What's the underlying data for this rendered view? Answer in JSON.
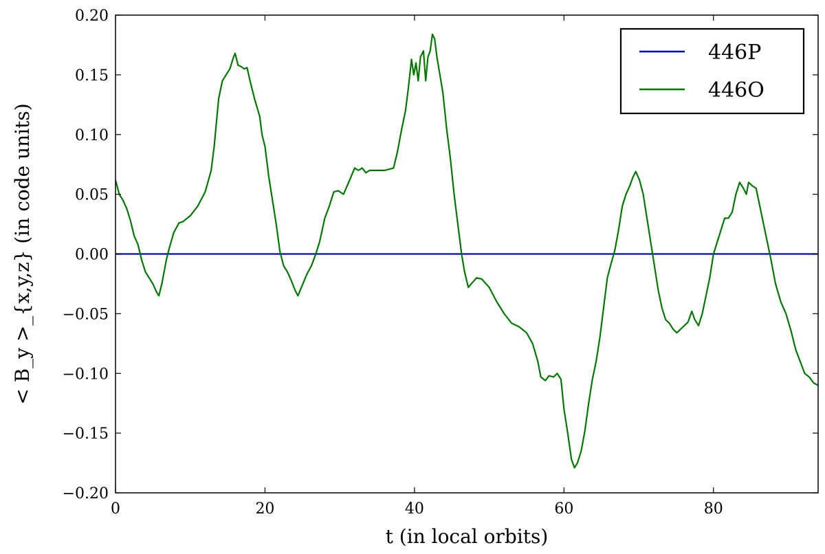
{
  "chart_data": {
    "type": "line",
    "title": "",
    "xlabel": "t (in local orbits)",
    "ylabel": "< B_y >_{x,y,z}  (in code units)",
    "xlim": [
      0,
      94
    ],
    "ylim": [
      -0.2,
      0.2
    ],
    "x_ticks": [
      0,
      20,
      40,
      60,
      80
    ],
    "x_tick_labels": [
      "0",
      "20",
      "40",
      "60",
      "80"
    ],
    "y_ticks": [
      -0.2,
      -0.15,
      -0.1,
      -0.05,
      0.0,
      0.05,
      0.1,
      0.15,
      0.2
    ],
    "y_tick_labels": [
      "−0.20",
      "−0.15",
      "−0.10",
      "−0.05",
      "0.00",
      "0.05",
      "0.10",
      "0.15",
      "0.20"
    ],
    "grid": false,
    "legend_position": "top-right",
    "series": [
      {
        "name": "446P",
        "color": "#0000cc",
        "points": [
          [
            0,
            0.0
          ],
          [
            94,
            0.0
          ]
        ]
      },
      {
        "name": "446O",
        "color": "#007700",
        "points": [
          [
            0,
            0.062
          ],
          [
            0.5,
            0.05
          ],
          [
            1,
            0.045
          ],
          [
            1.5,
            0.038
          ],
          [
            2,
            0.028
          ],
          [
            2.5,
            0.015
          ],
          [
            3,
            0.008
          ],
          [
            3.5,
            -0.005
          ],
          [
            4,
            -0.015
          ],
          [
            4.5,
            -0.02
          ],
          [
            5,
            -0.025
          ],
          [
            5.5,
            -0.032
          ],
          [
            5.8,
            -0.035
          ],
          [
            6.2,
            -0.025
          ],
          [
            6.8,
            -0.005
          ],
          [
            7.2,
            0.005
          ],
          [
            7.8,
            0.018
          ],
          [
            8.5,
            0.026
          ],
          [
            9,
            0.027
          ],
          [
            10,
            0.032
          ],
          [
            11,
            0.04
          ],
          [
            12,
            0.052
          ],
          [
            12.8,
            0.07
          ],
          [
            13.2,
            0.09
          ],
          [
            13.8,
            0.13
          ],
          [
            14.3,
            0.145
          ],
          [
            14.8,
            0.15
          ],
          [
            15.3,
            0.155
          ],
          [
            15.8,
            0.165
          ],
          [
            16,
            0.168
          ],
          [
            16.4,
            0.158
          ],
          [
            16.8,
            0.157
          ],
          [
            17.2,
            0.155
          ],
          [
            17.6,
            0.156
          ],
          [
            18,
            0.145
          ],
          [
            18.6,
            0.13
          ],
          [
            19.3,
            0.115
          ],
          [
            19.6,
            0.1
          ],
          [
            20,
            0.09
          ],
          [
            20.5,
            0.065
          ],
          [
            21,
            0.045
          ],
          [
            21.5,
            0.025
          ],
          [
            22,
            0.002
          ],
          [
            22.5,
            -0.01
          ],
          [
            23,
            -0.015
          ],
          [
            23.5,
            -0.022
          ],
          [
            24,
            -0.03
          ],
          [
            24.4,
            -0.035
          ],
          [
            25,
            -0.026
          ],
          [
            25.6,
            -0.017
          ],
          [
            26.2,
            -0.01
          ],
          [
            26.8,
            0.0
          ],
          [
            27.3,
            0.01
          ],
          [
            28,
            0.03
          ],
          [
            28.6,
            0.04
          ],
          [
            29.2,
            0.052
          ],
          [
            29.8,
            0.053
          ],
          [
            30.5,
            0.05
          ],
          [
            31.2,
            0.06
          ],
          [
            32,
            0.072
          ],
          [
            32.5,
            0.07
          ],
          [
            33,
            0.072
          ],
          [
            33.5,
            0.068
          ],
          [
            34,
            0.07
          ],
          [
            35,
            0.07
          ],
          [
            36,
            0.07
          ],
          [
            37.2,
            0.072
          ],
          [
            37.7,
            0.085
          ],
          [
            38.3,
            0.105
          ],
          [
            38.8,
            0.12
          ],
          [
            39.2,
            0.14
          ],
          [
            39.6,
            0.163
          ],
          [
            39.9,
            0.15
          ],
          [
            40.2,
            0.16
          ],
          [
            40.5,
            0.145
          ],
          [
            40.8,
            0.165
          ],
          [
            41.2,
            0.17
          ],
          [
            41.5,
            0.145
          ],
          [
            41.8,
            0.165
          ],
          [
            42.1,
            0.17
          ],
          [
            42.4,
            0.184
          ],
          [
            42.7,
            0.18
          ],
          [
            43,
            0.165
          ],
          [
            43.4,
            0.15
          ],
          [
            43.8,
            0.135
          ],
          [
            44.3,
            0.105
          ],
          [
            44.8,
            0.08
          ],
          [
            45.3,
            0.05
          ],
          [
            45.8,
            0.025
          ],
          [
            46.3,
            0.0
          ],
          [
            46.7,
            -0.015
          ],
          [
            47.2,
            -0.028
          ],
          [
            47.6,
            -0.025
          ],
          [
            48.3,
            -0.02
          ],
          [
            49,
            -0.021
          ],
          [
            50,
            -0.028
          ],
          [
            51,
            -0.04
          ],
          [
            52,
            -0.05
          ],
          [
            53,
            -0.058
          ],
          [
            54,
            -0.061
          ],
          [
            55,
            -0.066
          ],
          [
            55.8,
            -0.075
          ],
          [
            56.5,
            -0.09
          ],
          [
            56.9,
            -0.103
          ],
          [
            57.5,
            -0.106
          ],
          [
            58,
            -0.102
          ],
          [
            58.6,
            -0.103
          ],
          [
            59.1,
            -0.1
          ],
          [
            59.6,
            -0.105
          ],
          [
            60,
            -0.13
          ],
          [
            60.5,
            -0.15
          ],
          [
            61,
            -0.172
          ],
          [
            61.4,
            -0.179
          ],
          [
            61.8,
            -0.175
          ],
          [
            62.3,
            -0.165
          ],
          [
            62.8,
            -0.148
          ],
          [
            63.3,
            -0.125
          ],
          [
            63.8,
            -0.105
          ],
          [
            64.3,
            -0.09
          ],
          [
            64.8,
            -0.07
          ],
          [
            65.3,
            -0.045
          ],
          [
            65.8,
            -0.02
          ],
          [
            66.3,
            -0.008
          ],
          [
            66.8,
            0.003
          ],
          [
            67.3,
            0.02
          ],
          [
            67.8,
            0.04
          ],
          [
            68.3,
            0.05
          ],
          [
            68.8,
            0.057
          ],
          [
            69.2,
            0.064
          ],
          [
            69.6,
            0.069
          ],
          [
            70.1,
            0.062
          ],
          [
            70.6,
            0.05
          ],
          [
            71.1,
            0.03
          ],
          [
            71.6,
            0.01
          ],
          [
            72.1,
            -0.01
          ],
          [
            72.6,
            -0.03
          ],
          [
            73.1,
            -0.045
          ],
          [
            73.6,
            -0.055
          ],
          [
            74.1,
            -0.058
          ],
          [
            74.6,
            -0.063
          ],
          [
            75.1,
            -0.066
          ],
          [
            75.6,
            -0.063
          ],
          [
            76.1,
            -0.06
          ],
          [
            76.6,
            -0.057
          ],
          [
            77.1,
            -0.048
          ],
          [
            77.5,
            -0.055
          ],
          [
            78,
            -0.06
          ],
          [
            78.5,
            -0.05
          ],
          [
            79,
            -0.035
          ],
          [
            79.5,
            -0.02
          ],
          [
            80,
            0.0
          ],
          [
            80.5,
            0.01
          ],
          [
            81,
            0.02
          ],
          [
            81.5,
            0.03
          ],
          [
            82,
            0.03
          ],
          [
            82.5,
            0.035
          ],
          [
            83,
            0.05
          ],
          [
            83.5,
            0.06
          ],
          [
            84,
            0.055
          ],
          [
            84.4,
            0.05
          ],
          [
            84.7,
            0.06
          ],
          [
            85.2,
            0.057
          ],
          [
            85.7,
            0.055
          ],
          [
            86.2,
            0.04
          ],
          [
            86.7,
            0.025
          ],
          [
            87.2,
            0.01
          ],
          [
            87.7,
            -0.005
          ],
          [
            88.3,
            -0.025
          ],
          [
            89,
            -0.04
          ],
          [
            89.7,
            -0.05
          ],
          [
            90.4,
            -0.065
          ],
          [
            91,
            -0.08
          ],
          [
            91.6,
            -0.09
          ],
          [
            92.2,
            -0.1
          ],
          [
            92.8,
            -0.103
          ],
          [
            93.4,
            -0.108
          ],
          [
            94,
            -0.11
          ]
        ]
      }
    ]
  }
}
